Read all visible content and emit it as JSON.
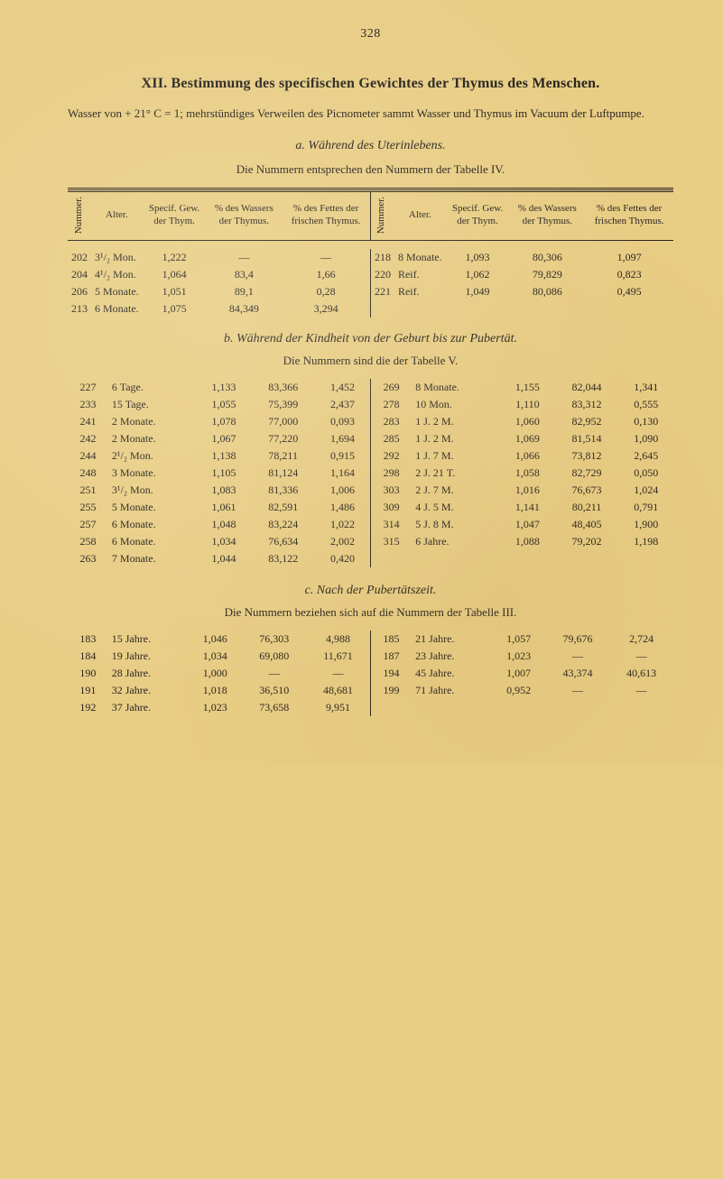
{
  "page_number": "328",
  "chapter": "XII. Bestimmung des specifischen Gewichtes der Thymus des Menschen.",
  "intro_a": "Wasser von + 21° C = 1; mehrstündiges Verweilen des Picnometer sammt Wasser und Thymus im Vacuum der Luftpumpe.",
  "section_a_title": "a. Während des Uterinlebens.",
  "section_a_sub": "Die Nummern entsprechen den Nummern der Tabelle IV.",
  "headers": {
    "nummer": "Nummer.",
    "alter": "Alter.",
    "specif": "Specif. Gew. der Thym.",
    "pct_wasser": "% des Wassers der Thymus.",
    "pct_fett": "% des Fettes der frischen Thymus."
  },
  "table_a_left": [
    {
      "n": "202",
      "alter": "3¹/₂ Mon.",
      "sg": "1,222",
      "w": "—",
      "f": "—"
    },
    {
      "n": "204",
      "alter": "4¹/₂ Mon.",
      "sg": "1,064",
      "w": "83,4",
      "f": "1,66"
    },
    {
      "n": "206",
      "alter": "5 Monate.",
      "sg": "1,051",
      "w": "89,1",
      "f": "0,28"
    },
    {
      "n": "213",
      "alter": "6 Monate.",
      "sg": "1,075",
      "w": "84,349",
      "f": "3,294"
    }
  ],
  "table_a_right": [
    {
      "n": "218",
      "alter": "8 Monate.",
      "sg": "1,093",
      "w": "80,306",
      "f": "1,097"
    },
    {
      "n": "220",
      "alter": "Reif.",
      "sg": "1,062",
      "w": "79,829",
      "f": "0,823"
    },
    {
      "n": "221",
      "alter": "Reif.",
      "sg": "1,049",
      "w": "80,086",
      "f": "0,495"
    }
  ],
  "section_b_title": "b. Während der Kindheit von der Geburt bis zur Pubertät.",
  "section_b_sub": "Die Nummern sind die der Tabelle V.",
  "table_b_left": [
    {
      "n": "227",
      "alter": "6 Tage.",
      "sg": "1,133",
      "w": "83,366",
      "f": "1,452"
    },
    {
      "n": "233",
      "alter": "15 Tage.",
      "sg": "1,055",
      "w": "75,399",
      "f": "2,437"
    },
    {
      "n": "241",
      "alter": "2 Monate.",
      "sg": "1,078",
      "w": "77,000",
      "f": "0,093"
    },
    {
      "n": "242",
      "alter": "2 Monate.",
      "sg": "1,067",
      "w": "77,220",
      "f": "1,694"
    },
    {
      "n": "244",
      "alter": "2¹/₂ Mon.",
      "sg": "1,138",
      "w": "78,211",
      "f": "0,915"
    },
    {
      "n": "248",
      "alter": "3 Monate.",
      "sg": "1,105",
      "w": "81,124",
      "f": "1,164"
    },
    {
      "n": "251",
      "alter": "3¹/₂ Mon.",
      "sg": "1,083",
      "w": "81,336",
      "f": "1,006"
    },
    {
      "n": "255",
      "alter": "5 Monate.",
      "sg": "1,061",
      "w": "82,591",
      "f": "1,486"
    },
    {
      "n": "257",
      "alter": "6 Monate.",
      "sg": "1,048",
      "w": "83,224",
      "f": "1,022"
    },
    {
      "n": "258",
      "alter": "6 Monate.",
      "sg": "1,034",
      "w": "76,634",
      "f": "2,002"
    },
    {
      "n": "263",
      "alter": "7 Monate.",
      "sg": "1,044",
      "w": "83,122",
      "f": "0,420"
    }
  ],
  "table_b_right": [
    {
      "n": "269",
      "alter": "8 Monate.",
      "sg": "1,155",
      "w": "82,044",
      "f": "1,341"
    },
    {
      "n": "278",
      "alter": "10 Mon.",
      "sg": "1,110",
      "w": "83,312",
      "f": "0,555"
    },
    {
      "n": "283",
      "alter": "1 J. 2 M.",
      "sg": "1,060",
      "w": "82,952",
      "f": "0,130"
    },
    {
      "n": "285",
      "alter": "1 J. 2 M.",
      "sg": "1,069",
      "w": "81,514",
      "f": "1,090"
    },
    {
      "n": "292",
      "alter": "1 J. 7 M.",
      "sg": "1,066",
      "w": "73,812",
      "f": "2,645"
    },
    {
      "n": "298",
      "alter": "2 J. 21 T.",
      "sg": "1,058",
      "w": "82,729",
      "f": "0,050"
    },
    {
      "n": "303",
      "alter": "2 J. 7 M.",
      "sg": "1,016",
      "w": "76,673",
      "f": "1,024"
    },
    {
      "n": "309",
      "alter": "4 J. 5 M.",
      "sg": "1,141",
      "w": "80,211",
      "f": "0,791"
    },
    {
      "n": "314",
      "alter": "5 J. 8 M.",
      "sg": "1,047",
      "w": "48,405",
      "f": "1,900"
    },
    {
      "n": "315",
      "alter": "6 Jahre.",
      "sg": "1,088",
      "w": "79,202",
      "f": "1,198"
    }
  ],
  "section_c_title": "c. Nach der Pubertätszeit.",
  "section_c_sub": "Die Nummern beziehen sich auf die Nummern der Tabelle III.",
  "table_c_left": [
    {
      "n": "183",
      "alter": "15 Jahre.",
      "sg": "1,046",
      "w": "76,303",
      "f": "4,988"
    },
    {
      "n": "184",
      "alter": "19 Jahre.",
      "sg": "1,034",
      "w": "69,080",
      "f": "11,671"
    },
    {
      "n": "190",
      "alter": "28 Jahre.",
      "sg": "1,000",
      "w": "—",
      "f": "—"
    },
    {
      "n": "191",
      "alter": "32 Jahre.",
      "sg": "1,018",
      "w": "36,510",
      "f": "48,681"
    },
    {
      "n": "192",
      "alter": "37 Jahre.",
      "sg": "1,023",
      "w": "73,658",
      "f": "9,951"
    }
  ],
  "table_c_right": [
    {
      "n": "185",
      "alter": "21 Jahre.",
      "sg": "1,057",
      "w": "79,676",
      "f": "2,724"
    },
    {
      "n": "187",
      "alter": "23 Jahre.",
      "sg": "1,023",
      "w": "—",
      "f": "—"
    },
    {
      "n": "194",
      "alter": "45 Jahre.",
      "sg": "1,007",
      "w": "43,374",
      "f": "40,613"
    },
    {
      "n": "199",
      "alter": "71 Jahre.",
      "sg": "0,952",
      "w": "—",
      "f": "—"
    }
  ],
  "colors": {
    "bg": "#e8cd85",
    "text": "#2a2520"
  }
}
